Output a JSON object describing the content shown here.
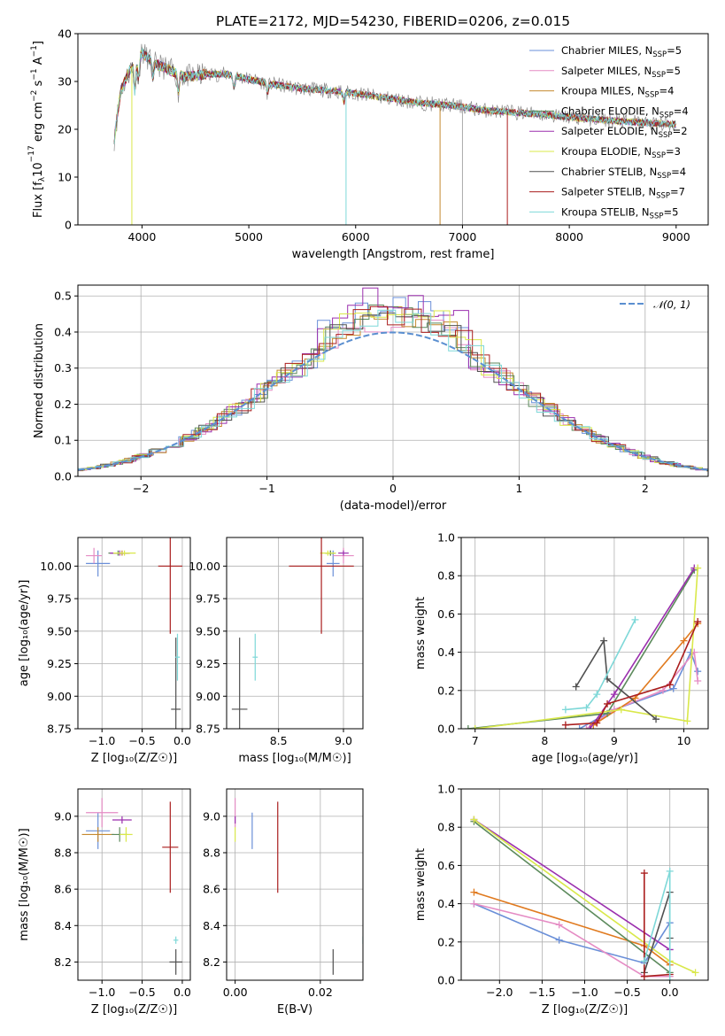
{
  "colors": {
    "Chabrier MILES": "#6a8fd8",
    "Salpeter MILES": "#e58cc4",
    "Kroupa MILES": "#c5892f",
    "Chabrier ELODIE": "#5c8a5c",
    "Salpeter ELODIE": "#9b2fae",
    "Kroupa ELODIE": "#d9e84a",
    "Chabrier STELIB": "#505050",
    "Salpeter STELIB": "#aa1d1d",
    "Kroupa STELIB": "#7ed8d8",
    "orange_line": "#e07a1f",
    "normal_curve": "#5b8fd0"
  },
  "chart_data": [
    {
      "id": "spectrum",
      "type": "line",
      "title": "PLATE=2172, MJD=54230, FIBERID=0206, z=0.015",
      "xlabel": "wavelength [Angstrom, rest frame]",
      "ylabel_main": "Flux [f",
      "ylabel_sub": "λ",
      "ylabel_tail": "10",
      "ylabel_sup": "−17",
      "ylabel_end": " erg cm",
      "ylabel_end2": " s",
      "ylabel_end3": " A",
      "ylabel_bracket": "]",
      "xlim": [
        3400,
        9300
      ],
      "ylim": [
        0,
        40
      ],
      "xticks": [
        4000,
        5000,
        6000,
        7000,
        8000,
        9000
      ],
      "yticks": [
        0,
        10,
        20,
        30,
        40
      ],
      "grid": false,
      "legend_position": "top-right",
      "continuum": [
        [
          3740,
          18
        ],
        [
          3800,
          28
        ],
        [
          3900,
          33
        ],
        [
          4000,
          36
        ],
        [
          4100,
          34
        ],
        [
          4200,
          33
        ],
        [
          4400,
          31
        ],
        [
          4600,
          31.5
        ],
        [
          4800,
          31.5
        ],
        [
          5000,
          30.5
        ],
        [
          5200,
          29.5
        ],
        [
          5500,
          28.5
        ],
        [
          5800,
          28
        ],
        [
          6000,
          27.5
        ],
        [
          6300,
          26.5
        ],
        [
          6600,
          25.5
        ],
        [
          6900,
          25
        ],
        [
          7200,
          24
        ],
        [
          7500,
          23.5
        ],
        [
          7800,
          23
        ],
        [
          8000,
          22.5
        ],
        [
          8300,
          22
        ],
        [
          8600,
          21.5
        ],
        [
          9000,
          21
        ]
      ],
      "series": [
        {
          "name": "Chabrier MILES",
          "nssp": "5"
        },
        {
          "name": "Salpeter MILES",
          "nssp": "5"
        },
        {
          "name": "Kroupa MILES",
          "nssp": "4"
        },
        {
          "name": "Chabrier ELODIE",
          "nssp": "4"
        },
        {
          "name": "Salpeter ELODIE",
          "nssp": "2"
        },
        {
          "name": "Kroupa ELODIE",
          "nssp": "3"
        },
        {
          "name": "Chabrier STELIB",
          "nssp": "4"
        },
        {
          "name": "Salpeter STELIB",
          "nssp": "7"
        },
        {
          "name": "Kroupa STELIB",
          "nssp": "5"
        }
      ],
      "legend_nssp_prefix": "N",
      "legend_nssp_sub": "SSP"
    },
    {
      "id": "residuals",
      "type": "line",
      "xlabel": "(data-model)/error",
      "ylabel": "Normed distribution",
      "xlim": [
        -2.5,
        2.5
      ],
      "ylim": [
        0,
        0.53
      ],
      "xticks": [
        -2,
        -1,
        0,
        1,
        2
      ],
      "yticks": [
        0.0,
        0.1,
        0.2,
        0.3,
        0.4,
        0.5
      ],
      "grid": true,
      "legend_position": "top-right",
      "legend_label": "𝒩(0, 1)",
      "peak_values": [
        0.47,
        0.43,
        0.44,
        0.45,
        0.5,
        0.46,
        0.44,
        0.45,
        0.43
      ]
    },
    {
      "id": "age-vs-Z",
      "type": "scatter",
      "xlabel": "Z [log₁₀(Z/Z☉)]",
      "ylabel": "age  [log₁₀(age/yr)]",
      "xlim": [
        -1.3,
        0.1
      ],
      "ylim": [
        8.75,
        10.22
      ],
      "xticks": [
        -1.0,
        -0.5,
        0.0
      ],
      "yticks": [
        8.75,
        9.0,
        9.25,
        9.5,
        9.75,
        10.0
      ],
      "grid": true,
      "points": [
        {
          "s": "Chabrier MILES",
          "x": -1.05,
          "y": 10.02,
          "xerr": 0.15,
          "yerr": 0.1
        },
        {
          "s": "Salpeter MILES",
          "x": -1.1,
          "y": 10.08,
          "xerr": 0.1,
          "yerr": 0.06
        },
        {
          "s": "Kroupa MILES",
          "x": -0.75,
          "y": 10.1,
          "xerr": 0.1,
          "yerr": 0.02
        },
        {
          "s": "Chabrier ELODIE",
          "x": -0.8,
          "y": 10.1,
          "xerr": 0.12,
          "yerr": 0.02
        },
        {
          "s": "Salpeter ELODIE",
          "x": -0.78,
          "y": 10.1,
          "xerr": 0.12,
          "yerr": 0.02
        },
        {
          "s": "Kroupa ELODIE",
          "x": -0.72,
          "y": 10.1,
          "xerr": 0.14,
          "yerr": 0.02
        },
        {
          "s": "Chabrier STELIB",
          "x": -0.08,
          "y": 8.9,
          "xerr": 0.06,
          "yerr": 0.55
        },
        {
          "s": "Salpeter STELIB",
          "x": -0.15,
          "y": 10.0,
          "xerr": 0.15,
          "yerr": 0.52
        },
        {
          "s": "Kroupa STELIB",
          "x": -0.06,
          "y": 9.3,
          "xerr": 0.03,
          "yerr": 0.18
        }
      ]
    },
    {
      "id": "age-vs-mass",
      "type": "scatter",
      "xlabel": "mass [log₁₀(M/M☉)]",
      "xlim": [
        8.1,
        9.15
      ],
      "ylim": [
        8.75,
        10.22
      ],
      "xticks": [
        8.5,
        9.0
      ],
      "yticks": [
        8.75,
        9.0,
        9.25,
        9.5,
        9.75,
        10.0
      ],
      "grid": true,
      "points": [
        {
          "s": "Chabrier MILES",
          "x": 8.92,
          "y": 10.02,
          "xerr": 0.05,
          "yerr": 0.1
        },
        {
          "s": "Salpeter MILES",
          "x": 9.0,
          "y": 10.08,
          "xerr": 0.08,
          "yerr": 0.06
        },
        {
          "s": "Kroupa MILES",
          "x": 8.9,
          "y": 10.1,
          "xerr": 0.04,
          "yerr": 0.02
        },
        {
          "s": "Chabrier ELODIE",
          "x": 8.9,
          "y": 10.1,
          "xerr": 0.04,
          "yerr": 0.02
        },
        {
          "s": "Salpeter ELODIE",
          "x": 9.0,
          "y": 10.1,
          "xerr": 0.04,
          "yerr": 0.02
        },
        {
          "s": "Kroupa ELODIE",
          "x": 8.88,
          "y": 10.1,
          "xerr": 0.06,
          "yerr": 0.02
        },
        {
          "s": "Chabrier STELIB",
          "x": 8.2,
          "y": 8.9,
          "xerr": 0.06,
          "yerr": 0.55
        },
        {
          "s": "Salpeter STELIB",
          "x": 8.83,
          "y": 10.0,
          "xerr": 0.25,
          "yerr": 0.52
        },
        {
          "s": "Kroupa STELIB",
          "x": 8.32,
          "y": 9.3,
          "xerr": 0.02,
          "yerr": 0.18
        }
      ]
    },
    {
      "id": "weight-vs-age",
      "type": "line",
      "xlabel": "age  [log₁₀(age/yr)]",
      "ylabel": "mass weight",
      "xlim": [
        6.8,
        10.35
      ],
      "ylim": [
        0,
        1.0
      ],
      "xticks": [
        7,
        8,
        9,
        10
      ],
      "yticks": [
        0.0,
        0.2,
        0.4,
        0.6,
        0.8,
        1.0
      ],
      "grid": true,
      "lines": [
        {
          "s": "Chabrier MILES",
          "pts": [
            [
              8.5,
              0.0
            ],
            [
              9.0,
              0.1
            ],
            [
              9.85,
              0.21
            ],
            [
              10.1,
              0.4
            ],
            [
              10.2,
              0.3
            ]
          ]
        },
        {
          "s": "Salpeter MILES",
          "pts": [
            [
              8.6,
              0.0
            ],
            [
              9.0,
              0.1
            ],
            [
              9.7,
              0.2
            ],
            [
              10.15,
              0.4
            ],
            [
              10.2,
              0.25
            ]
          ]
        },
        {
          "s": "orange",
          "pts": [
            [
              8.7,
              0.02
            ],
            [
              9.3,
              0.16
            ],
            [
              10.0,
              0.46
            ],
            [
              10.2,
              0.55
            ]
          ]
        },
        {
          "s": "Chabrier ELODIE",
          "pts": [
            [
              6.9,
              0.0
            ],
            [
              8.9,
              0.08
            ],
            [
              10.15,
              0.83
            ]
          ]
        },
        {
          "s": "Salpeter ELODIE",
          "pts": [
            [
              8.65,
              0.0
            ],
            [
              9.0,
              0.18
            ],
            [
              10.15,
              0.84
            ]
          ]
        },
        {
          "s": "Kroupa ELODIE",
          "pts": [
            [
              7.0,
              0.0
            ],
            [
              9.1,
              0.1
            ],
            [
              10.05,
              0.04
            ],
            [
              10.2,
              0.84
            ]
          ]
        },
        {
          "s": "Chabrier STELIB",
          "pts": [
            [
              8.45,
              0.22
            ],
            [
              8.85,
              0.46
            ],
            [
              8.9,
              0.26
            ],
            [
              9.6,
              0.05
            ]
          ]
        },
        {
          "s": "Salpeter STELIB",
          "pts": [
            [
              8.3,
              0.02
            ],
            [
              8.75,
              0.03
            ],
            [
              8.9,
              0.13
            ],
            [
              9.8,
              0.23
            ],
            [
              10.2,
              0.56
            ]
          ]
        },
        {
          "s": "Kroupa STELIB",
          "pts": [
            [
              8.3,
              0.1
            ],
            [
              8.6,
              0.11
            ],
            [
              8.75,
              0.18
            ],
            [
              9.3,
              0.57
            ]
          ]
        }
      ]
    },
    {
      "id": "mass-vs-Z",
      "type": "scatter",
      "xlabel": "Z [log₁₀(Z/Z☉)]",
      "ylabel": "mass [log₁₀(M/M☉)]",
      "xlim": [
        -1.3,
        0.1
      ],
      "ylim": [
        8.1,
        9.15
      ],
      "xticks": [
        -1.0,
        -0.5,
        0.0
      ],
      "yticks": [
        8.2,
        8.4,
        8.6,
        8.8,
        9.0
      ],
      "grid": true,
      "points": [
        {
          "s": "Chabrier MILES",
          "x": -1.05,
          "y": 8.92,
          "xerr": 0.15,
          "yerr": 0.1
        },
        {
          "s": "Salpeter MILES",
          "x": -1.0,
          "y": 9.02,
          "xerr": 0.2,
          "yerr": 0.08
        },
        {
          "s": "Kroupa MILES",
          "x": -1.05,
          "y": 8.9,
          "xerr": 0.2,
          "yerr": 0.04
        },
        {
          "s": "Chabrier ELODIE",
          "x": -0.78,
          "y": 8.9,
          "xerr": 0.1,
          "yerr": 0.04
        },
        {
          "s": "Salpeter ELODIE",
          "x": -0.75,
          "y": 8.98,
          "xerr": 0.12,
          "yerr": 0.02
        },
        {
          "s": "Kroupa ELODIE",
          "x": -0.7,
          "y": 8.9,
          "xerr": 0.08,
          "yerr": 0.04
        },
        {
          "s": "Chabrier STELIB",
          "x": -0.08,
          "y": 8.2,
          "xerr": 0.08,
          "yerr": 0.07
        },
        {
          "s": "Salpeter STELIB",
          "x": -0.15,
          "y": 8.83,
          "xerr": 0.1,
          "yerr": 0.25
        },
        {
          "s": "Kroupa STELIB",
          "x": -0.08,
          "y": 8.32,
          "xerr": 0.03,
          "yerr": 0.02
        }
      ]
    },
    {
      "id": "mass-vs-EBV",
      "type": "scatter",
      "xlabel": "E(B-V)",
      "xlim": [
        -0.002,
        0.03
      ],
      "ylim": [
        8.1,
        9.15
      ],
      "xticks": [
        0.0,
        0.02
      ],
      "xticklabels": [
        "0.00",
        "0.02"
      ],
      "yticks": [
        8.2,
        8.4,
        8.6,
        8.8,
        9.0
      ],
      "grid": true,
      "points": [
        {
          "s": "Chabrier MILES",
          "x": 0.004,
          "y": 8.92,
          "xerr": 0,
          "yerr": 0.1
        },
        {
          "s": "Salpeter MILES",
          "x": 0.0,
          "y": 9.02,
          "xerr": 0,
          "yerr": 0.08
        },
        {
          "s": "Salpeter ELODIE",
          "x": 0.0,
          "y": 8.98,
          "xerr": 0,
          "yerr": 0.02
        },
        {
          "s": "Kroupa ELODIE",
          "x": 0.0,
          "y": 8.9,
          "xerr": 0,
          "yerr": 0.04
        },
        {
          "s": "Chabrier STELIB",
          "x": 0.023,
          "y": 8.2,
          "xerr": 0,
          "yerr": 0.07
        },
        {
          "s": "Salpeter STELIB",
          "x": 0.01,
          "y": 8.83,
          "xerr": 0,
          "yerr": 0.25
        },
        {
          "s": "Kroupa STELIB",
          "x": 0.03,
          "y": 8.32,
          "xerr": 0,
          "yerr": 0.02
        }
      ]
    },
    {
      "id": "weight-vs-Z",
      "type": "line",
      "xlabel": "Z [log₁₀(Z/Z☉)]",
      "ylabel": "mass weight",
      "xlim": [
        -2.45,
        0.45
      ],
      "ylim": [
        0,
        1.0
      ],
      "xticks": [
        -2.0,
        -1.5,
        -1.0,
        -0.5,
        0.0
      ],
      "yticks": [
        0.0,
        0.2,
        0.4,
        0.6,
        0.8,
        1.0
      ],
      "grid": true,
      "lines": [
        {
          "s": "Chabrier MILES",
          "pts": [
            [
              -2.3,
              0.4
            ],
            [
              -1.3,
              0.21
            ],
            [
              -0.3,
              0.09
            ],
            [
              0.0,
              0.3
            ]
          ]
        },
        {
          "s": "Salpeter MILES",
          "pts": [
            [
              -2.3,
              0.4
            ],
            [
              -1.3,
              0.29
            ],
            [
              -0.3,
              0.02
            ],
            [
              0.0,
              0.02
            ]
          ]
        },
        {
          "s": "orange",
          "pts": [
            [
              -2.3,
              0.46
            ],
            [
              -0.3,
              0.18
            ],
            [
              0.0,
              0.08
            ]
          ]
        },
        {
          "s": "Chabrier ELODIE",
          "pts": [
            [
              -2.3,
              0.83
            ],
            [
              0.0,
              0.04
            ]
          ]
        },
        {
          "s": "Salpeter ELODIE",
          "pts": [
            [
              -2.3,
              0.84
            ],
            [
              0.0,
              0.16
            ]
          ]
        },
        {
          "s": "Kroupa ELODIE",
          "pts": [
            [
              -2.3,
              0.84
            ],
            [
              0.0,
              0.1
            ],
            [
              0.3,
              0.04
            ]
          ]
        },
        {
          "s": "Chabrier STELIB",
          "pts": [
            [
              -0.3,
              0.04
            ],
            [
              0.0,
              0.46
            ],
            [
              0.0,
              0.22
            ]
          ]
        },
        {
          "s": "Salpeter STELIB",
          "pts": [
            [
              -0.3,
              0.56
            ],
            [
              -0.3,
              0.02
            ],
            [
              0.0,
              0.03
            ]
          ]
        },
        {
          "s": "Kroupa STELIB",
          "pts": [
            [
              -0.3,
              0.1
            ],
            [
              0.0,
              0.57
            ],
            [
              0.0,
              0.0
            ]
          ]
        }
      ]
    }
  ]
}
